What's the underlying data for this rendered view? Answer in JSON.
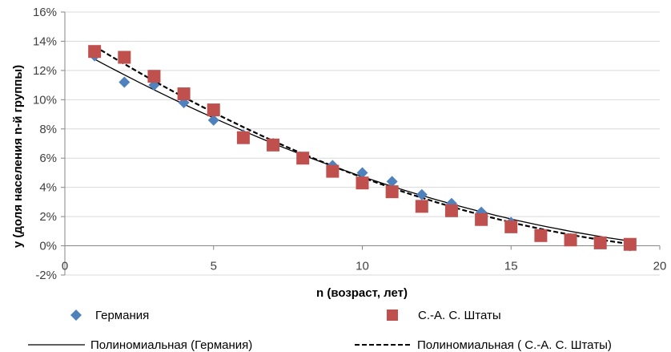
{
  "chart_data": {
    "type": "scatter",
    "xlabel": "n (возраст, лет)",
    "ylabel": "y (доля населения n-й группы)",
    "xlim": [
      0,
      20
    ],
    "ylim": [
      -0.02,
      0.16
    ],
    "x_ticks": [
      "0",
      "5",
      "10",
      "15",
      "20"
    ],
    "y_ticks": [
      "-2%",
      "0%",
      "2%",
      "4%",
      "6%",
      "8%",
      "10%",
      "12%",
      "14%",
      "16%"
    ],
    "grid": "horizontal",
    "legend_position": "bottom",
    "series": [
      {
        "name": "Германия",
        "marker": "diamond",
        "color": "#4F81BD",
        "x": [
          1,
          2,
          3,
          4,
          5,
          6,
          7,
          8,
          9,
          10,
          11,
          12,
          13,
          14,
          15,
          16,
          17,
          18,
          19
        ],
        "y": [
          0.13,
          0.112,
          0.11,
          0.098,
          0.086,
          0.076,
          0.07,
          0.06,
          0.055,
          0.05,
          0.044,
          0.035,
          0.029,
          0.023,
          0.016,
          0.008,
          0.005,
          0.002,
          0.0
        ]
      },
      {
        "name": "С.-А. С. Штаты",
        "marker": "square",
        "color": "#C0504D",
        "x": [
          1,
          2,
          3,
          4,
          5,
          6,
          7,
          8,
          9,
          10,
          11,
          12,
          13,
          14,
          15,
          16,
          17,
          18,
          19
        ],
        "y": [
          0.133,
          0.129,
          0.116,
          0.104,
          0.093,
          0.074,
          0.069,
          0.06,
          0.051,
          0.043,
          0.037,
          0.027,
          0.024,
          0.018,
          0.013,
          0.007,
          0.004,
          0.002,
          0.001
        ]
      }
    ],
    "trendlines": [
      {
        "name": "Полиномиальная (Германия)",
        "style": "solid-thin",
        "coef": [
          0.1389,
          -0.01139,
          0.0002237
        ]
      },
      {
        "name": "Полиномиальная ( С.-А. С. Штаты)",
        "style": "dashed",
        "coef": [
          0.1493,
          -0.01298,
          0.0002732
        ]
      }
    ],
    "colors": {
      "axis": "#868686",
      "grid": "#d9d9d9",
      "trend": "#000000"
    }
  }
}
